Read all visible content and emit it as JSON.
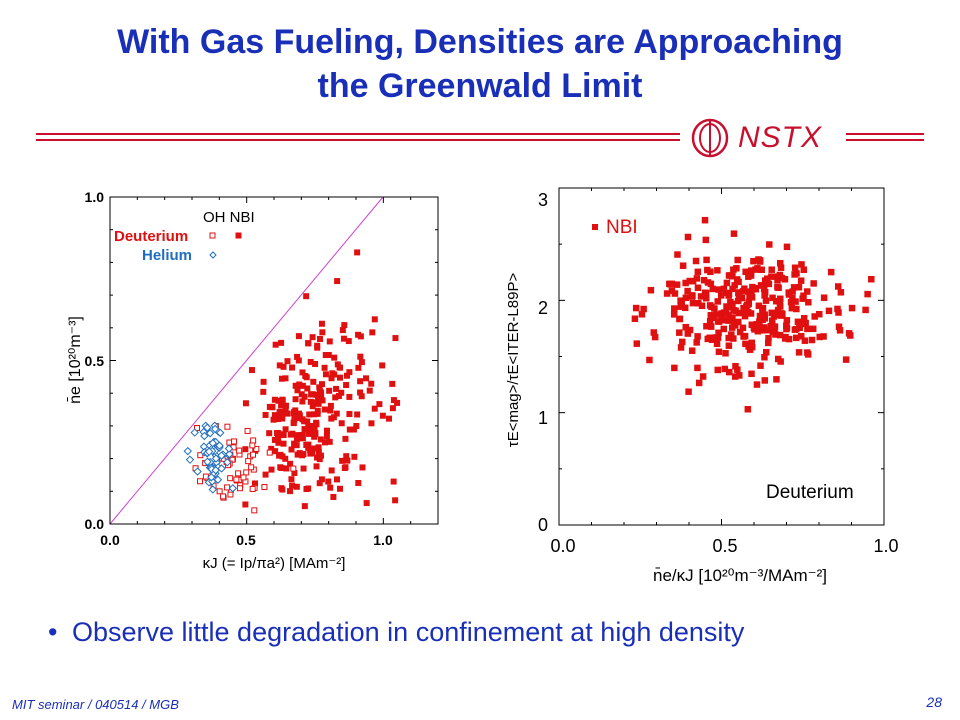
{
  "slide": {
    "title_line1": "With Gas Fueling, Densities are Approaching",
    "title_line2": "the Greenwald Limit",
    "logo_text": "NSTX",
    "bullet": "Observe little degradation in confinement at high density",
    "footer": "MIT seminar / 040514 / MGB",
    "page_number": "28"
  },
  "colors": {
    "title": "#1a2fb8",
    "accent": "#c8102e",
    "deuterium": "#e01010",
    "helium": "#1f6fc0",
    "limit_line": "#d040d0"
  },
  "chart_data": [
    {
      "type": "scatter",
      "xlim": [
        0.0,
        1.2
      ],
      "ylim": [
        0.0,
        1.0
      ],
      "x_ticks": [
        "0.0",
        "0.5",
        "1.0"
      ],
      "y_ticks": [
        "0.0",
        "0.5",
        "1.0"
      ],
      "ylabel": "n̄e [10²⁰m⁻³]",
      "xlabel": "κJ (= Ip/πa²) [MAm⁻²]",
      "legend": {
        "header": "OH NBI",
        "entries": [
          "Deuterium",
          "Helium"
        ],
        "placement": "top-left"
      },
      "reference_line": {
        "from": [
          0.0,
          0.0
        ],
        "to": [
          1.0,
          1.0
        ]
      },
      "series": [
        {
          "name": "Deuterium",
          "marker": "square",
          "filled_note": "OH open, NBI filled",
          "clusters": [
            {
              "cx": 0.7,
              "cy": 0.32,
              "sx": 0.09,
              "sy": 0.13,
              "n": 200,
              "filled": true
            },
            {
              "cx": 0.88,
              "cy": 0.4,
              "sx": 0.09,
              "sy": 0.14,
              "n": 70,
              "filled": true
            },
            {
              "cx": 0.45,
              "cy": 0.18,
              "sx": 0.07,
              "sy": 0.06,
              "n": 60,
              "filled": false
            }
          ]
        },
        {
          "name": "Helium",
          "marker": "diamond",
          "clusters": [
            {
              "cx": 0.38,
              "cy": 0.2,
              "sx": 0.04,
              "sy": 0.05,
              "n": 60,
              "filled": false
            }
          ]
        }
      ]
    },
    {
      "type": "scatter",
      "xlim": [
        0.0,
        1.0
      ],
      "ylim": [
        0,
        3
      ],
      "x_ticks": [
        "0.0",
        "0.5",
        "1.0"
      ],
      "y_ticks": [
        "0",
        "1",
        "2",
        "3"
      ],
      "ylabel": "τE<mag>/τE<ITER-L89P>",
      "xlabel": "n̄e/κJ [10²⁰m⁻³/MAm⁻²]",
      "legend": {
        "entries": [
          "NBI"
        ],
        "placement": "top-left"
      },
      "annotation": "Deuterium",
      "series": [
        {
          "name": "NBI",
          "marker": "square",
          "clusters": [
            {
              "cx": 0.58,
              "cy": 1.92,
              "sx": 0.14,
              "sy": 0.28,
              "n": 330,
              "filled": true
            }
          ]
        }
      ]
    }
  ]
}
